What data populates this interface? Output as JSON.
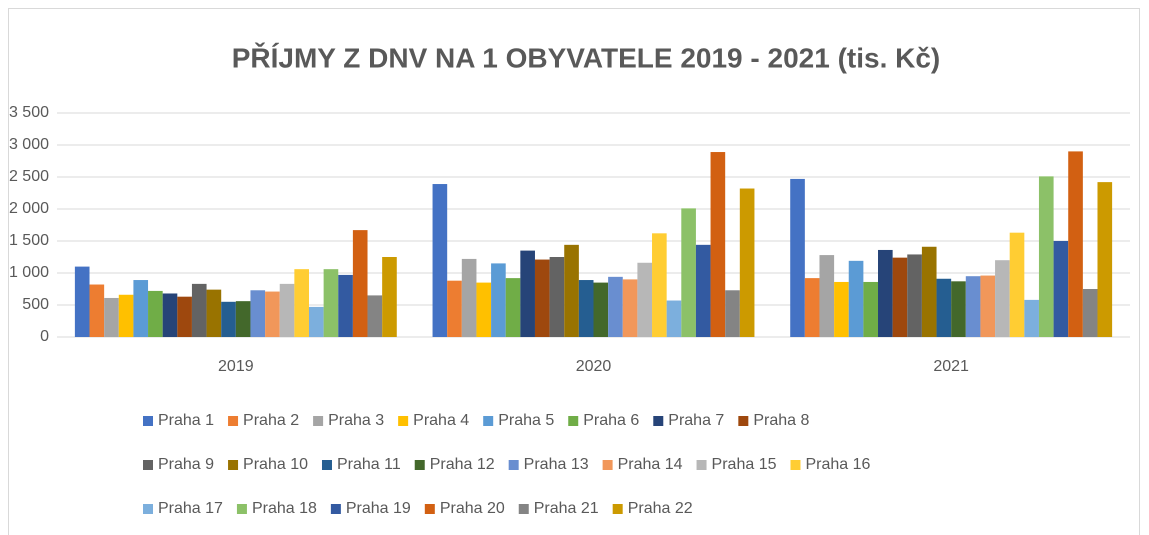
{
  "chart_data": {
    "type": "bar",
    "title": "PŘÍJMY Z DNV NA 1 OBYVATELE 2019 - 2021 (tis. Kč)",
    "categories": [
      "2019",
      "2020",
      "2021"
    ],
    "series": [
      {
        "name": "Praha 1",
        "color": "#4472C4",
        "values": [
          1100,
          2390,
          2470
        ]
      },
      {
        "name": "Praha 2",
        "color": "#ED7D31",
        "values": [
          820,
          880,
          920
        ]
      },
      {
        "name": "Praha 3",
        "color": "#A5A5A5",
        "values": [
          610,
          1220,
          1280
        ]
      },
      {
        "name": "Praha 4",
        "color": "#FFC000",
        "values": [
          660,
          850,
          860
        ]
      },
      {
        "name": "Praha 5",
        "color": "#5B9BD5",
        "values": [
          890,
          1150,
          1190
        ]
      },
      {
        "name": "Praha 6",
        "color": "#70AD47",
        "values": [
          720,
          920,
          860
        ]
      },
      {
        "name": "Praha 7",
        "color": "#264478",
        "values": [
          680,
          1350,
          1360
        ]
      },
      {
        "name": "Praha 8",
        "color": "#9E480E",
        "values": [
          630,
          1210,
          1240
        ]
      },
      {
        "name": "Praha 9",
        "color": "#636363",
        "values": [
          830,
          1250,
          1290
        ]
      },
      {
        "name": "Praha 10",
        "color": "#997300",
        "values": [
          740,
          1440,
          1410
        ]
      },
      {
        "name": "Praha 11",
        "color": "#255E91",
        "values": [
          550,
          890,
          910
        ]
      },
      {
        "name": "Praha 12",
        "color": "#43682B",
        "values": [
          560,
          850,
          870
        ]
      },
      {
        "name": "Praha 13",
        "color": "#698ED0",
        "values": [
          730,
          940,
          950
        ]
      },
      {
        "name": "Praha 14",
        "color": "#F1975A",
        "values": [
          710,
          900,
          960
        ]
      },
      {
        "name": "Praha 15",
        "color": "#B7B7B7",
        "values": [
          830,
          1160,
          1200
        ]
      },
      {
        "name": "Praha 16",
        "color": "#FFCD33",
        "values": [
          1060,
          1620,
          1630
        ]
      },
      {
        "name": "Praha 17",
        "color": "#7CAFDD",
        "values": [
          470,
          570,
          580
        ]
      },
      {
        "name": "Praha 18",
        "color": "#8CC168",
        "values": [
          1060,
          2010,
          2510
        ]
      },
      {
        "name": "Praha 19",
        "color": "#335AA1",
        "values": [
          970,
          1440,
          1500
        ]
      },
      {
        "name": "Praha 20",
        "color": "#D26012",
        "values": [
          1670,
          2890,
          2900
        ]
      },
      {
        "name": "Praha 21",
        "color": "#848484",
        "values": [
          650,
          730,
          750
        ]
      },
      {
        "name": "Praha 22",
        "color": "#CC9A00",
        "values": [
          1250,
          2320,
          2420
        ]
      }
    ],
    "ylim": [
      0,
      3500
    ],
    "yticks": [
      0,
      500,
      {
        "value": 1000,
        "label": "1 000"
      },
      {
        "value": 1500,
        "label": "1 500"
      },
      {
        "value": 2000,
        "label": "2 000"
      },
      {
        "value": 2500,
        "label": "2 500"
      },
      {
        "value": 3000,
        "label": "3 000"
      },
      {
        "value": 3500,
        "label": "3 500"
      }
    ],
    "grid": true,
    "legend": "bottom"
  }
}
